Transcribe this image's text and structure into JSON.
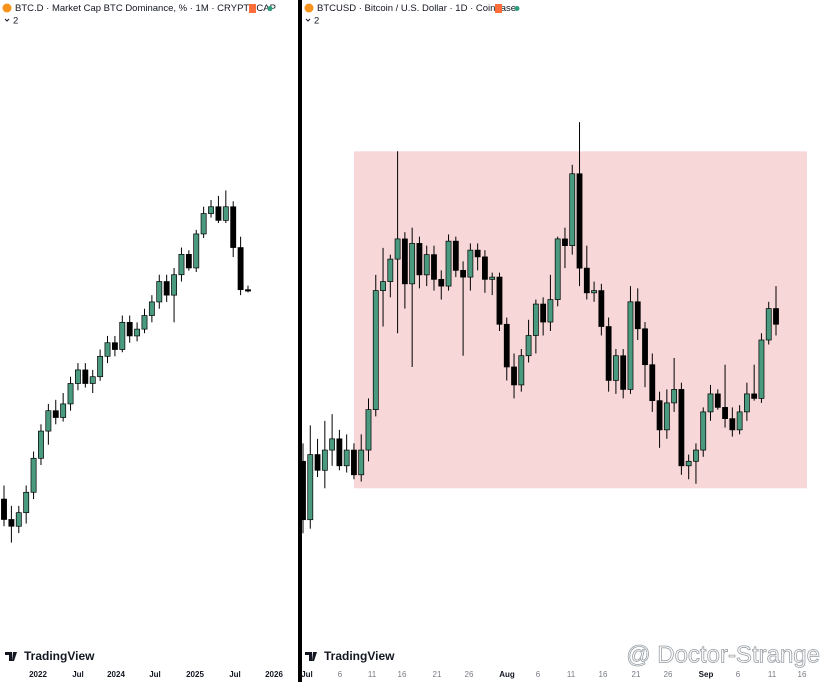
{
  "left_panel": {
    "header": "BTC.D · Market Cap BTC Dominance, % · 1M · CRYPTOCAP",
    "indicator_count": "2",
    "logo": "TradingView",
    "time_axis": [
      "2022",
      "Jul",
      "2024",
      "Jul",
      "2025",
      "Jul",
      "2026"
    ],
    "chart": {
      "type": "candlestick",
      "ylim": [
        31.9,
        77.5
      ],
      "up_color": "#4a9a80",
      "down_color": "#000000",
      "candles": [
        [
          43,
          44,
          41,
          41.5
        ],
        [
          41.5,
          42.5,
          39.8,
          41
        ],
        [
          41,
          42.5,
          40.5,
          42
        ],
        [
          42,
          44,
          41.2,
          43.5
        ],
        [
          43.5,
          46.5,
          43,
          46
        ],
        [
          46,
          48.5,
          45.5,
          48
        ],
        [
          48,
          50,
          47,
          49.5
        ],
        [
          49.5,
          50.3,
          48.5,
          49
        ],
        [
          49,
          50.8,
          48.7,
          50
        ],
        [
          50,
          52,
          49.5,
          51.5
        ],
        [
          51.5,
          53,
          51,
          52.5
        ],
        [
          52.5,
          53,
          51.2,
          51.5
        ],
        [
          51.5,
          52.5,
          50.8,
          52
        ],
        [
          52,
          54,
          51.7,
          53.5
        ],
        [
          53.5,
          55,
          53,
          54.5
        ],
        [
          54.5,
          55,
          53.5,
          54
        ],
        [
          54,
          56.5,
          53.8,
          56
        ],
        [
          56,
          56.5,
          54.5,
          55
        ],
        [
          55,
          56,
          54.6,
          55.5
        ],
        [
          55.5,
          57,
          55.2,
          56.5
        ],
        [
          56.5,
          58,
          56,
          57.5
        ],
        [
          57.5,
          59.5,
          57,
          59
        ],
        [
          59,
          59.5,
          57.5,
          58
        ],
        [
          58,
          60,
          56,
          59.5
        ],
        [
          59.5,
          61.5,
          59,
          61
        ],
        [
          61,
          61.3,
          59.8,
          60
        ],
        [
          60,
          62.8,
          59.7,
          62.5
        ],
        [
          62.5,
          64.5,
          62.2,
          64
        ],
        [
          64,
          65,
          63.7,
          64.5
        ],
        [
          64.5,
          65.3,
          63.3,
          63.5
        ],
        [
          63.5,
          65.7,
          63.3,
          64.5
        ],
        [
          64.5,
          64.9,
          60.8,
          61.5
        ],
        [
          61.5,
          62.3,
          58,
          58.4
        ],
        [
          58.4,
          58.7,
          58.2,
          58.3
        ]
      ]
    }
  },
  "right_panel": {
    "header": "BTCUSD · Bitcoin / U.S. Dollar · 1D · Coinbase",
    "indicator_count": "2",
    "logo": "TradingView",
    "time_axis": [
      "Jul",
      "6",
      "11",
      "16",
      "21",
      "26",
      "Aug",
      "6",
      "11",
      "16",
      "21",
      "26",
      "Sep",
      "6",
      "11",
      "16"
    ],
    "chart": {
      "type": "candlestick",
      "ylim": [
        100800,
        128400
      ],
      "up_color": "#4a9a80",
      "down_color": "#000000",
      "range_box": {
        "top": 123000,
        "bottom": 108000,
        "color": "#f7d7d8"
      },
      "candles": [
        [
          109200,
          110000,
          106000,
          106600
        ],
        [
          106600,
          110800,
          106200,
          109500
        ],
        [
          109500,
          110200,
          108500,
          108800
        ],
        [
          108800,
          111000,
          108000,
          109700
        ],
        [
          109700,
          111300,
          109000,
          110200
        ],
        [
          110200,
          110600,
          108800,
          109000
        ],
        [
          109000,
          110400,
          108700,
          109700
        ],
        [
          109700,
          110000,
          108400,
          108600
        ],
        [
          108600,
          110400,
          108300,
          109700
        ],
        [
          109700,
          112000,
          109200,
          111500
        ],
        [
          111500,
          117500,
          111200,
          116800
        ],
        [
          116800,
          118700,
          115200,
          117200
        ],
        [
          117200,
          118400,
          116500,
          118200
        ],
        [
          118200,
          123000,
          114900,
          119100
        ],
        [
          119100,
          119400,
          116000,
          117100
        ],
        [
          117100,
          119600,
          113400,
          118900
        ],
        [
          118900,
          119200,
          116900,
          117500
        ],
        [
          117500,
          118800,
          117000,
          118400
        ],
        [
          118400,
          118800,
          116800,
          117300
        ],
        [
          117300,
          117700,
          116400,
          117000
        ],
        [
          117000,
          119300,
          116800,
          119000
        ],
        [
          119000,
          119200,
          117400,
          117700
        ],
        [
          117700,
          118100,
          113900,
          117400
        ],
        [
          117400,
          118900,
          116800,
          118600
        ],
        [
          118600,
          118900,
          117700,
          118300
        ],
        [
          118300,
          118600,
          116700,
          117300
        ],
        [
          117300,
          117600,
          116600,
          117400
        ],
        [
          117400,
          117600,
          115000,
          115300
        ],
        [
          115300,
          115600,
          112800,
          113400
        ],
        [
          113400,
          114000,
          112000,
          112600
        ],
        [
          112600,
          114200,
          112300,
          113900
        ],
        [
          113900,
          115500,
          113600,
          114800
        ],
        [
          114800,
          116400,
          114000,
          116200
        ],
        [
          116200,
          116500,
          114800,
          115400
        ],
        [
          115400,
          117500,
          115000,
          116400
        ],
        [
          116400,
          119200,
          116100,
          119100
        ],
        [
          119100,
          119600,
          117800,
          118800
        ],
        [
          118800,
          122400,
          118400,
          122000
        ],
        [
          122000,
          124300,
          117000,
          117800
        ],
        [
          117800,
          118800,
          116400,
          116700
        ],
        [
          116700,
          117200,
          116300,
          116800
        ],
        [
          116800,
          117100,
          114800,
          115200
        ],
        [
          115200,
          115600,
          112300,
          112800
        ],
        [
          112800,
          114200,
          112200,
          113900
        ],
        [
          113900,
          114200,
          112000,
          112400
        ],
        [
          112400,
          117000,
          112200,
          116300
        ],
        [
          116300,
          116900,
          114600,
          115100
        ],
        [
          115100,
          115400,
          112500,
          113500
        ],
        [
          113500,
          114000,
          111400,
          111900
        ],
        [
          111900,
          112300,
          109800,
          110600
        ],
        [
          110600,
          112400,
          110200,
          111800
        ],
        [
          111800,
          113800,
          111400,
          112400
        ],
        [
          112400,
          112700,
          108600,
          109000
        ],
        [
          109000,
          109500,
          108400,
          109200
        ],
        [
          109200,
          110000,
          108200,
          109700
        ],
        [
          109700,
          111600,
          109400,
          111400
        ],
        [
          111400,
          112600,
          111000,
          112200
        ],
        [
          112200,
          112400,
          111500,
          111600
        ],
        [
          111600,
          113500,
          110700,
          111100
        ],
        [
          111100,
          111600,
          110300,
          110600
        ],
        [
          110600,
          111700,
          110400,
          111400
        ],
        [
          111400,
          112700,
          111000,
          112200
        ],
        [
          112200,
          113500,
          111900,
          112000
        ],
        [
          112000,
          114900,
          111800,
          114600
        ],
        [
          114600,
          116300,
          114400,
          116000
        ],
        [
          116000,
          117000,
          114800,
          115300
        ]
      ]
    }
  },
  "watermark": "@ Doctor-Strange"
}
